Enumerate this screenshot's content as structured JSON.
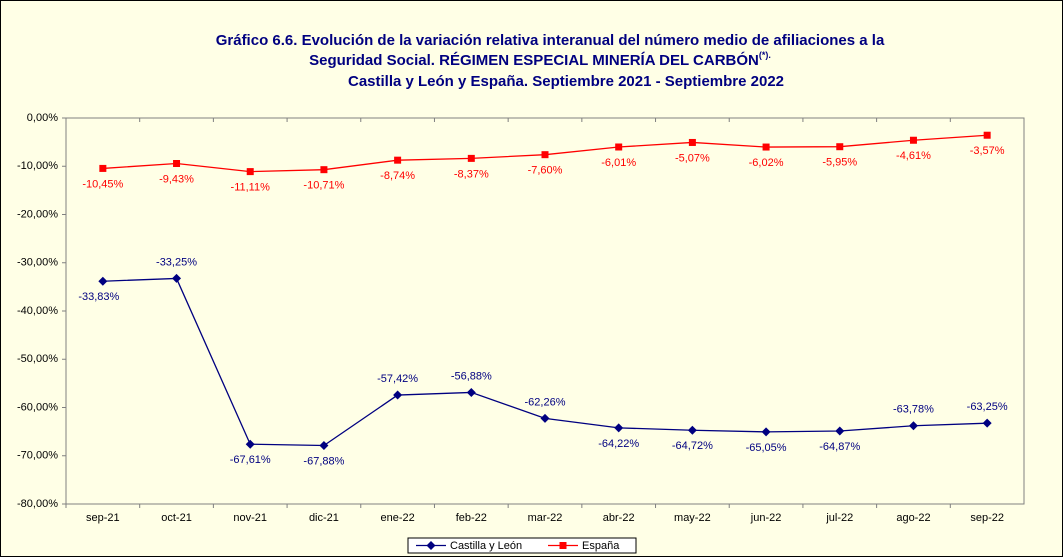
{
  "chart_data": {
    "type": "line",
    "title": [
      "Gráfico 6.6. Evolución de la variación relativa interanual del número medio de  afiliaciones a la",
      "Seguridad Social. RÉGIMEN ESPECIAL MINERÍA DEL CARBÓN",
      "Castilla y León y España. Septiembre 2021 - Septiembre 2022"
    ],
    "title_note": "(*).",
    "categories": [
      "sep-21",
      "oct-21",
      "nov-21",
      "dic-21",
      "ene-22",
      "feb-22",
      "mar-22",
      "abr-22",
      "may-22",
      "jun-22",
      "jul-22",
      "ago-22",
      "sep-22"
    ],
    "series": [
      {
        "name": "Castilla y León",
        "color": "#000080",
        "marker": "diamond",
        "values": [
          -33.83,
          -33.25,
          -67.61,
          -67.88,
          -57.42,
          -56.88,
          -62.26,
          -64.22,
          -64.72,
          -65.05,
          -64.87,
          -63.78,
          -63.25
        ],
        "value_labels": [
          "-33,83%",
          "-33,25%",
          "-67,61%",
          "-67,88%",
          "-57,42%",
          "-56,88%",
          "-62,26%",
          "-64,22%",
          "-64,72%",
          "-65,05%",
          "-64,87%",
          "-63,78%",
          "-63,25%"
        ]
      },
      {
        "name": "España",
        "color": "#ff0000",
        "marker": "square",
        "values": [
          -10.45,
          -9.43,
          -11.11,
          -10.71,
          -8.74,
          -8.37,
          -7.6,
          -6.01,
          -5.07,
          -6.02,
          -5.95,
          -4.61,
          -3.57
        ],
        "value_labels": [
          "-10,45%",
          "-9,43%",
          "-11,11%",
          "-10,71%",
          "-8,74%",
          "-8,37%",
          "-7,60%",
          "-6,01%",
          "-5,07%",
          "-6,02%",
          "-5,95%",
          "-4,61%",
          "-3,57%"
        ]
      }
    ],
    "ylim": [
      -80,
      0
    ],
    "yticks": [
      {
        "value": 0,
        "label": "0,00%"
      },
      {
        "value": -10,
        "label": "-10,00%"
      },
      {
        "value": -20,
        "label": "-20,00%"
      },
      {
        "value": -30,
        "label": "-30,00%"
      },
      {
        "value": -40,
        "label": "-40,00%"
      },
      {
        "value": -50,
        "label": "-50,00%"
      },
      {
        "value": -60,
        "label": "-60,00%"
      },
      {
        "value": -70,
        "label": "-70,00%"
      },
      {
        "value": -80,
        "label": "-80,00%"
      }
    ],
    "grid": false,
    "legend": "bottom"
  }
}
